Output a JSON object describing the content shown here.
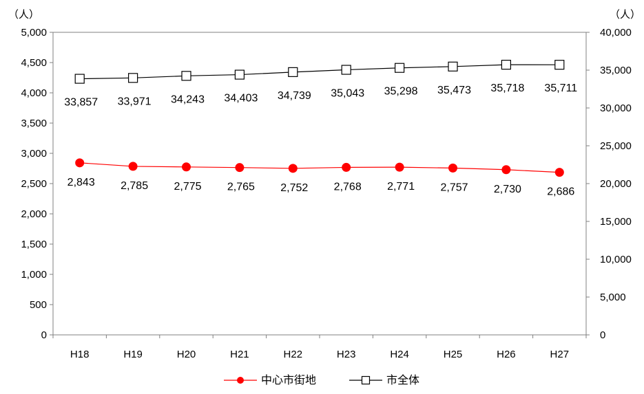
{
  "chart_data": {
    "type": "line",
    "categories": [
      "H18",
      "H19",
      "H20",
      "H21",
      "H22",
      "H23",
      "H24",
      "H25",
      "H26",
      "H27"
    ],
    "y_left": {
      "unit_label": "（人）",
      "ylim": [
        0,
        5000
      ],
      "ticks": [
        0,
        500,
        1000,
        1500,
        2000,
        2500,
        3000,
        3500,
        4000,
        4500,
        5000
      ],
      "tick_labels": [
        "0",
        "500",
        "1,000",
        "1,500",
        "2,000",
        "2,500",
        "3,000",
        "3,500",
        "4,000",
        "4,500",
        "5,000"
      ]
    },
    "y_right": {
      "unit_label": "（人）",
      "ylim": [
        0,
        40000
      ],
      "ticks": [
        0,
        5000,
        10000,
        15000,
        20000,
        25000,
        30000,
        35000,
        40000
      ],
      "tick_labels": [
        "0",
        "5,000",
        "10,000",
        "15,000",
        "20,000",
        "25,000",
        "30,000",
        "35,000",
        "40,000"
      ]
    },
    "series": [
      {
        "name": "中心市街地",
        "axis": "left",
        "color": "#ff0000",
        "marker": "circle",
        "values": [
          2843,
          2785,
          2775,
          2765,
          2752,
          2768,
          2771,
          2757,
          2730,
          2686
        ],
        "labels": [
          "2,843",
          "2,785",
          "2,775",
          "2,765",
          "2,752",
          "2,768",
          "2,771",
          "2,757",
          "2,730",
          "2,686"
        ]
      },
      {
        "name": "市全体",
        "axis": "right",
        "color": "#000000",
        "marker": "square-open",
        "values": [
          33857,
          33971,
          34243,
          34403,
          34739,
          35043,
          35298,
          35473,
          35718,
          35711
        ],
        "labels": [
          "33,857",
          "33,971",
          "34,243",
          "34,403",
          "34,739",
          "35,043",
          "35,298",
          "35,473",
          "35,718",
          "35,711"
        ]
      }
    ],
    "legend_position": "bottom-center",
    "grid": false
  }
}
